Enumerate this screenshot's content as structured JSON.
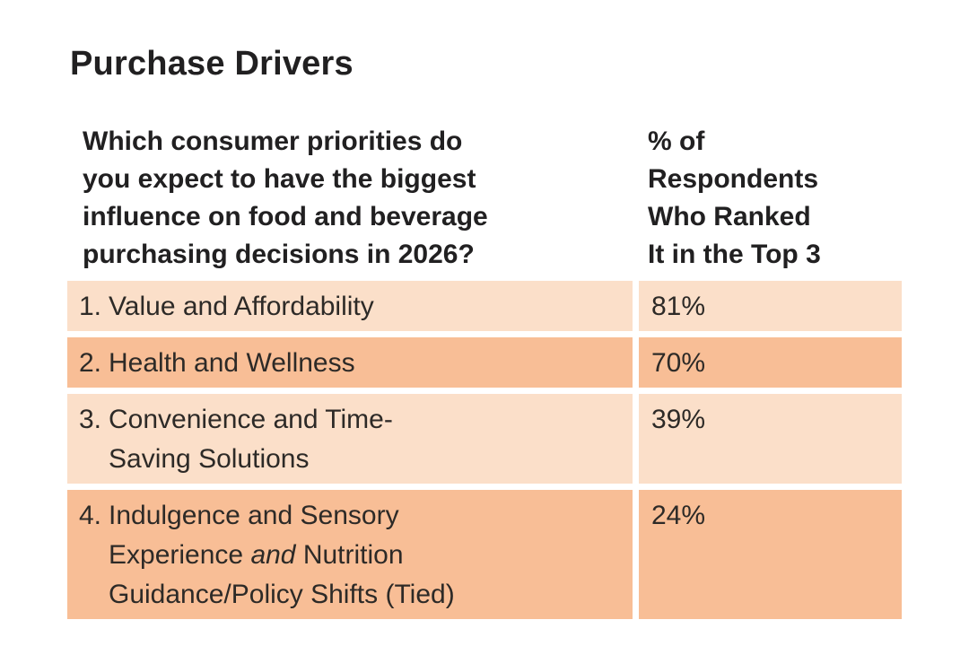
{
  "page": {
    "title": "Purchase Drivers"
  },
  "colors": {
    "background": "#ffffff",
    "row_light": "#fbdfc9",
    "row_dark": "#f8be96",
    "heading_text": "#212021",
    "body_text": "#2d2a27"
  },
  "table": {
    "header": {
      "question": "Which consumer priorities do you expect to have the biggest influence on food and beverage purchasing decisions in 2026?",
      "question_lines": [
        "Which consumer priorities do",
        "you expect to have the biggest",
        "influence on food and beverage",
        "purchasing decisions in 2026?"
      ],
      "percent_label": "% of Respondents Who Ranked It in the Top 3",
      "percent_lines": [
        "% of",
        "Respondents",
        "Who Ranked",
        "It in the Top 3"
      ]
    },
    "rows": [
      {
        "rank": "1.",
        "label": "Value and Affordability",
        "lines": [
          [
            {
              "t": "Value and Affordability"
            }
          ]
        ],
        "value": "81%",
        "shade": "light"
      },
      {
        "rank": "2.",
        "label": "Health and Wellness",
        "lines": [
          [
            {
              "t": "Health and Wellness"
            }
          ]
        ],
        "value": "70%",
        "shade": "dark"
      },
      {
        "rank": "3.",
        "label": "Convenience and Time-Saving Solutions",
        "lines": [
          [
            {
              "t": "Convenience and Time-"
            }
          ],
          [
            {
              "t": "Saving Solutions"
            }
          ]
        ],
        "value": "39%",
        "shade": "light"
      },
      {
        "rank": "4.",
        "label": "Indulgence and Sensory Experience and Nutrition Guidance/Policy Shifts (Tied)",
        "lines": [
          [
            {
              "t": "Indulgence and Sensory"
            }
          ],
          [
            {
              "t": "Experience "
            },
            {
              "t": "and",
              "i": true
            },
            {
              "t": " Nutrition"
            }
          ],
          [
            {
              "t": "Guidance/Policy Shifts (Tied)"
            }
          ]
        ],
        "value": "24%",
        "shade": "dark"
      }
    ]
  },
  "chart_data": {
    "type": "table",
    "title": "Purchase Drivers",
    "columns": [
      "Which consumer priorities do you expect to have the biggest influence on food and beverage purchasing decisions in 2026?",
      "% of Respondents Who Ranked It in the Top 3"
    ],
    "categories": [
      "Value and Affordability",
      "Health and Wellness",
      "Convenience and Time-Saving Solutions",
      "Indulgence and Sensory Experience and Nutrition Guidance/Policy Shifts (Tied)"
    ],
    "values": [
      81,
      70,
      39,
      24
    ],
    "unit": "% of respondents who ranked it in the top 3"
  }
}
